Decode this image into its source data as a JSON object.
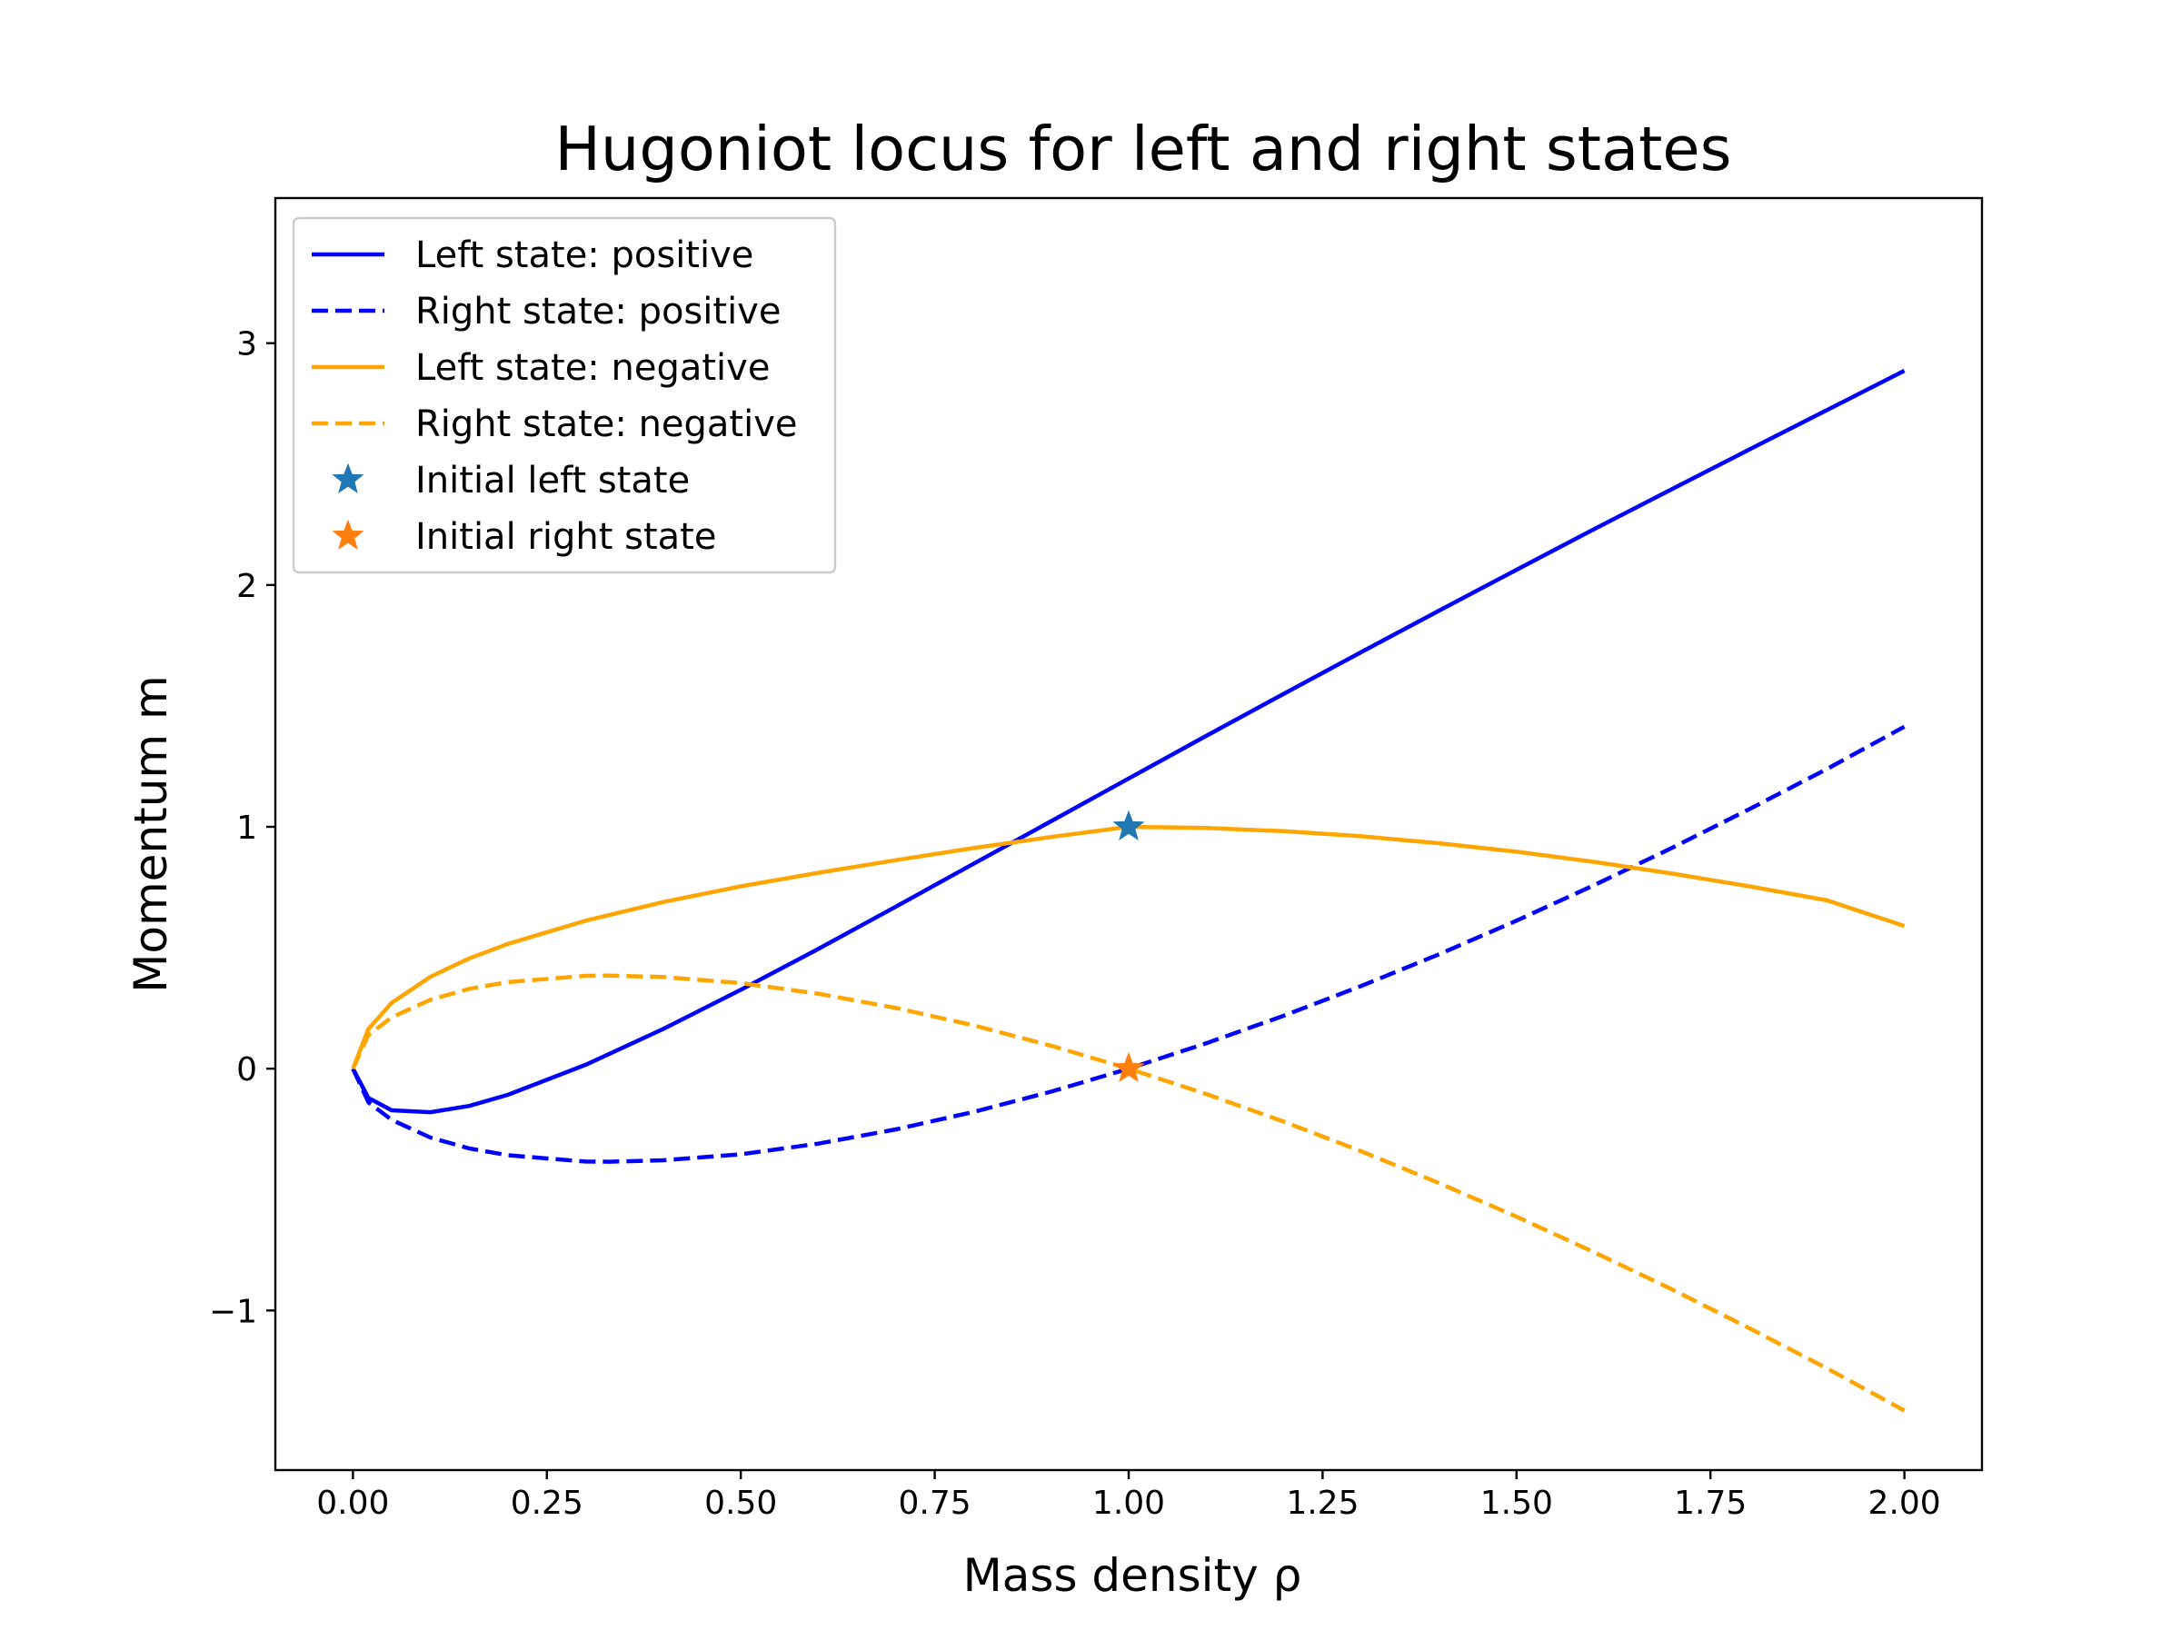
{
  "chart_data": {
    "type": "line",
    "title": "Hugoniot locus for left and right states",
    "xlabel": "Mass density ρ",
    "ylabel": "Momentum m",
    "xlim": [
      -0.1,
      2.1
    ],
    "ylim": [
      -1.66,
      3.6
    ],
    "xticks": [
      0.0,
      0.25,
      0.5,
      0.75,
      1.0,
      1.25,
      1.5,
      1.75,
      2.0
    ],
    "xtick_labels": [
      "0.00",
      "0.25",
      "0.50",
      "0.75",
      "1.00",
      "1.25",
      "1.50",
      "1.75",
      "2.00"
    ],
    "yticks": [
      -1,
      0,
      1,
      2,
      3
    ],
    "ytick_labels": [
      "−1",
      "0",
      "1",
      "2",
      "3"
    ],
    "grid": false,
    "legend_position": "upper-left",
    "series": [
      {
        "name": "Left state: positive",
        "color": "#0000ff",
        "dash": "solid",
        "x": [
          0.0,
          0.02,
          0.05,
          0.1,
          0.15,
          0.2,
          0.3,
          0.4,
          0.5,
          0.6,
          0.7,
          0.8,
          0.9,
          1.0,
          1.1,
          1.2,
          1.3,
          1.4,
          1.5,
          1.6,
          1.7,
          1.8,
          1.9,
          2.0
        ],
        "y": [
          0.0,
          -0.121,
          -0.172,
          -0.18,
          -0.154,
          -0.108,
          0.016,
          0.164,
          0.326,
          0.495,
          0.67,
          0.847,
          1.023,
          1.2,
          1.376,
          1.55,
          1.723,
          1.894,
          2.063,
          2.231,
          2.396,
          2.56,
          2.723,
          2.886
        ]
      },
      {
        "name": "Right state: positive",
        "color": "#0000ff",
        "dash": "dashed",
        "x": [
          0.0,
          0.02,
          0.05,
          0.1,
          0.15,
          0.2,
          0.3,
          0.33,
          0.4,
          0.5,
          0.6,
          0.7,
          0.8,
          0.9,
          1.0,
          1.1,
          1.2,
          1.3,
          1.4,
          1.5,
          1.6,
          1.7,
          1.8,
          1.9,
          2.0
        ],
        "y": [
          0.0,
          -0.139,
          -0.212,
          -0.285,
          -0.33,
          -0.358,
          -0.384,
          -0.385,
          -0.379,
          -0.354,
          -0.31,
          -0.251,
          -0.179,
          -0.095,
          0.0,
          0.105,
          0.219,
          0.342,
          0.473,
          0.612,
          0.759,
          0.912,
          1.073,
          1.239,
          1.414
        ]
      },
      {
        "name": "Left state: negative",
        "color": "#ffa500",
        "dash": "solid",
        "x": [
          0.0,
          0.02,
          0.05,
          0.1,
          0.15,
          0.2,
          0.3,
          0.4,
          0.5,
          0.6,
          0.7,
          0.8,
          0.9,
          1.0,
          1.1,
          1.2,
          1.3,
          1.4,
          1.5,
          1.6,
          1.7,
          1.8,
          1.9,
          2.0
        ],
        "y": [
          0.0,
          0.164,
          0.272,
          0.38,
          0.456,
          0.516,
          0.612,
          0.689,
          0.754,
          0.81,
          0.862,
          0.912,
          0.958,
          1.0,
          0.995,
          0.982,
          0.961,
          0.932,
          0.897,
          0.855,
          0.807,
          0.754,
          0.696,
          0.59
        ]
      },
      {
        "name": "Right state: negative",
        "color": "#ffa500",
        "dash": "dashed",
        "x": [
          0.0,
          0.02,
          0.05,
          0.1,
          0.15,
          0.2,
          0.3,
          0.33,
          0.4,
          0.5,
          0.6,
          0.7,
          0.8,
          0.9,
          1.0,
          1.1,
          1.2,
          1.3,
          1.4,
          1.5,
          1.6,
          1.7,
          1.8,
          1.9,
          2.0
        ],
        "y": [
          0.0,
          0.139,
          0.212,
          0.285,
          0.33,
          0.358,
          0.384,
          0.385,
          0.379,
          0.354,
          0.31,
          0.251,
          0.179,
          0.095,
          0.0,
          -0.105,
          -0.219,
          -0.342,
          -0.473,
          -0.612,
          -0.759,
          -0.912,
          -1.073,
          -1.239,
          -1.414
        ]
      }
    ],
    "markers": [
      {
        "name": "Initial left state",
        "x": 1.0,
        "y": 1.0,
        "color": "#1f77b4",
        "symbol": "star"
      },
      {
        "name": "Initial right state",
        "x": 1.0,
        "y": 0.0,
        "color": "#ff7f0e",
        "symbol": "star"
      }
    ]
  }
}
